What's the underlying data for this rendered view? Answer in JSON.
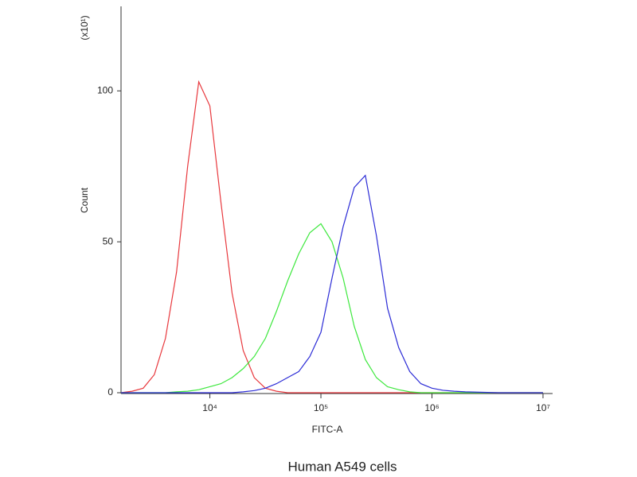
{
  "chart_data": {
    "type": "line",
    "caption": "Human A549 cells",
    "x_label": "FITC-A",
    "y_label": "Count",
    "y_multiplier": "(x10¹)",
    "log_x": true,
    "xlim": [
      1585,
      12200000
    ],
    "ylim": [
      0,
      128
    ],
    "xticks": [
      {
        "value": 10000,
        "label": "10⁴"
      },
      {
        "value": 100000,
        "label": "10⁵"
      },
      {
        "value": 1000000,
        "label": "10⁶"
      },
      {
        "value": 10000000,
        "label": "10⁷"
      }
    ],
    "yticks": [
      0,
      50,
      100
    ],
    "x": [
      1585,
      1995,
      2512,
      3162,
      3981,
      5012,
      6310,
      7943,
      10000,
      12589,
      15849,
      19953,
      25119,
      31623,
      39811,
      50119,
      63096,
      79433,
      100000,
      125893,
      158489,
      199526,
      251189,
      316228,
      398107,
      501187,
      630957,
      794328,
      1000000,
      1258925,
      1584893,
      1995262,
      2511886,
      3162278,
      3981072,
      5011872,
      6309573,
      7943282,
      10000000
    ],
    "series": [
      {
        "color": "#e8383d",
        "values": [
          0,
          0.5,
          1.5,
          6,
          18,
          40,
          75,
          103,
          95,
          63,
          33,
          14,
          5,
          1.5,
          0.5,
          0,
          0,
          0,
          0,
          0,
          0,
          0,
          0,
          0,
          0,
          0,
          0,
          0,
          0,
          0,
          0,
          0,
          0,
          0,
          0,
          0,
          0,
          0,
          0
        ]
      },
      {
        "color": "#3de83d",
        "values": [
          0,
          0,
          0,
          0,
          0,
          0.3,
          0.5,
          1,
          2,
          3,
          5,
          8,
          12,
          18,
          27,
          37,
          46,
          53,
          56,
          50,
          38,
          22,
          11,
          5,
          2,
          1,
          0.3,
          0,
          0,
          0,
          0,
          0,
          0,
          0,
          0,
          0,
          0,
          0,
          0
        ]
      },
      {
        "color": "#2b2bd6",
        "values": [
          0,
          0,
          0,
          0,
          0,
          0,
          0,
          0,
          0,
          0,
          0,
          0.3,
          0.7,
          1.5,
          3,
          5,
          7,
          12,
          20,
          38,
          55,
          68,
          72,
          52,
          28,
          15,
          7,
          3,
          1.5,
          0.8,
          0.5,
          0.3,
          0.2,
          0.1,
          0,
          0,
          0,
          0,
          0
        ]
      }
    ]
  }
}
